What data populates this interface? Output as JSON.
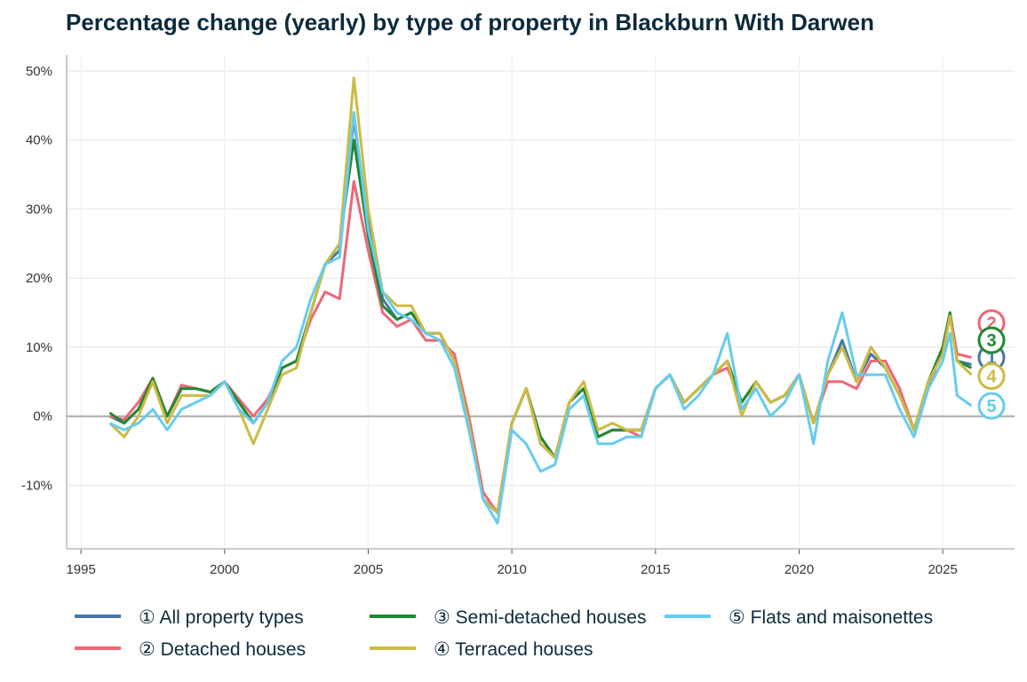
{
  "chart_data": {
    "type": "line",
    "title": "Percentage change (yearly) by type of property in Blackburn With Darwen",
    "xlabel": "",
    "ylabel": "",
    "xlim": [
      1994.5,
      2027.5
    ],
    "ylim": [
      -19.2,
      52.3
    ],
    "x_ticks": [
      1995,
      2000,
      2005,
      2010,
      2015,
      2020,
      2025
    ],
    "x_tick_labels": [
      "1995",
      "2000",
      "2005",
      "2010",
      "2015",
      "2020",
      "2025"
    ],
    "y_ticks": [
      -10,
      0,
      10,
      20,
      30,
      40,
      50
    ],
    "y_tick_labels": [
      "-10%",
      "0%",
      "10%",
      "20%",
      "30%",
      "40%",
      "50%"
    ],
    "grid": true,
    "legend_position": "bottom",
    "x": [
      1996.0,
      1996.5,
      1997.0,
      1997.5,
      1998.0,
      1998.5,
      1999.0,
      1999.5,
      2000.0,
      2000.5,
      2001.0,
      2001.5,
      2002.0,
      2002.5,
      2003.0,
      2003.5,
      2004.0,
      2004.5,
      2005.0,
      2005.5,
      2006.0,
      2006.5,
      2007.0,
      2007.5,
      2008.0,
      2008.5,
      2009.0,
      2009.5,
      2010.0,
      2010.5,
      2011.0,
      2011.5,
      2012.0,
      2012.5,
      2013.0,
      2013.5,
      2014.0,
      2014.5,
      2015.0,
      2015.5,
      2016.0,
      2016.5,
      2017.0,
      2017.5,
      2018.0,
      2018.5,
      2019.0,
      2019.5,
      2020.0,
      2020.5,
      2021.0,
      2021.5,
      2022.0,
      2022.5,
      2023.0,
      2023.5,
      2024.0,
      2024.5,
      2025.0,
      2025.25,
      2025.5,
      2026.0
    ],
    "series": [
      {
        "name": "① All property types",
        "badge": "1",
        "color": "#4477aa",
        "values": [
          0,
          -1,
          1,
          5,
          0,
          4,
          4,
          3.5,
          5,
          2,
          -1,
          2,
          7,
          8,
          15,
          22,
          24,
          43,
          28,
          17,
          14,
          15,
          12,
          12,
          8,
          -1,
          -12,
          -14,
          -1,
          4,
          -4,
          -6,
          2,
          4,
          -3,
          -2,
          -2,
          -2,
          4,
          6,
          2,
          4,
          6,
          8,
          2,
          5,
          2,
          3,
          6,
          -1,
          6,
          11,
          5,
          9,
          7,
          3,
          -2,
          5,
          10,
          15,
          8,
          7.5
        ]
      },
      {
        "name": "② Detached houses",
        "badge": "2",
        "color": "#ee6677",
        "values": [
          0,
          -0.5,
          2,
          5.5,
          0,
          4.5,
          4,
          3.5,
          5,
          2.5,
          0,
          2.5,
          7,
          8,
          14,
          18,
          17,
          34,
          24,
          15,
          13,
          14,
          11,
          11,
          9,
          0,
          -11,
          -14,
          -1,
          4,
          -3,
          -6,
          2,
          4,
          -3,
          -2,
          -2,
          -3,
          4,
          6,
          2,
          4,
          6,
          7,
          2,
          5,
          2,
          3,
          6,
          -1,
          5,
          5,
          4,
          8,
          8,
          4,
          -2,
          4,
          10,
          15,
          9,
          8.5
        ]
      },
      {
        "name": "③ Semi-detached houses",
        "badge": "3",
        "color": "#228833",
        "values": [
          0.5,
          -1,
          1,
          5.5,
          0,
          4,
          4,
          3.5,
          5,
          2,
          -1,
          2,
          7,
          8,
          15,
          22,
          25,
          40,
          26,
          16,
          14,
          15,
          12,
          12,
          8,
          -1,
          -12,
          -14,
          -1,
          4,
          -3,
          -6,
          2,
          4,
          -3,
          -2,
          -2,
          -2,
          4,
          6,
          2,
          4,
          6,
          8,
          2,
          5,
          2,
          3,
          6,
          -1,
          6,
          10,
          5,
          10,
          7,
          3,
          -2,
          5,
          10,
          15,
          8,
          7
        ]
      },
      {
        "name": "④ Terraced houses",
        "badge": "4",
        "color": "#ccbb44",
        "values": [
          -1,
          -3,
          0,
          5,
          -1,
          3,
          3,
          3,
          5,
          1,
          -4,
          1,
          6,
          7,
          15,
          22,
          25,
          49,
          30,
          18,
          16,
          16,
          12,
          12,
          8,
          -1,
          -12,
          -14,
          -1,
          4,
          -4,
          -6,
          2,
          5,
          -2,
          -1,
          -2,
          -2,
          4,
          6,
          2,
          4,
          6,
          8,
          0,
          5,
          2,
          3,
          6,
          -1,
          6,
          10,
          5,
          10,
          7,
          3,
          -2,
          5,
          9,
          14.5,
          8,
          6
        ]
      },
      {
        "name": "⑤ Flats and maisonettes",
        "badge": "5",
        "color": "#66ccee",
        "values": [
          -1,
          -2,
          -1,
          1,
          -2,
          1,
          2,
          3,
          5,
          1,
          -1,
          2,
          8,
          10,
          17,
          22,
          23,
          44,
          27,
          18,
          15,
          14,
          12,
          11,
          7,
          -2,
          -12,
          -15.5,
          -2,
          -4,
          -8,
          -7,
          1,
          3,
          -4,
          -4,
          -3,
          -3,
          4,
          6,
          1,
          3,
          6,
          12,
          1,
          4,
          0,
          2,
          6,
          -4,
          8,
          15,
          6,
          6,
          6,
          1,
          -3,
          4,
          8,
          12,
          3,
          1.5
        ]
      }
    ]
  }
}
